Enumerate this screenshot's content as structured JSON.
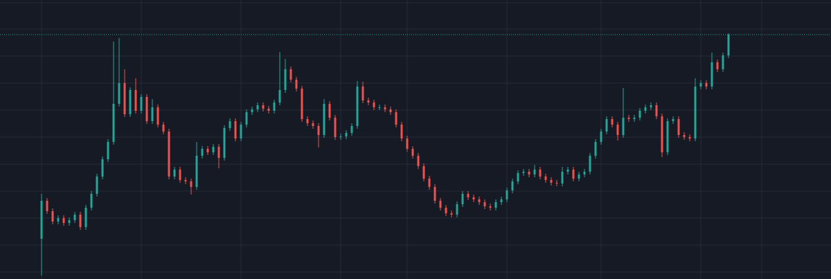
{
  "chart_data": {
    "type": "candlestick",
    "up_color": "#26a69a",
    "down_color": "#ef5350",
    "background": "#161a25",
    "grid_color": "#262b38",
    "grid": true,
    "last_price_line": true,
    "xlim": [
      -7.5,
      142.5
    ],
    "xticks": [
      0,
      18,
      36,
      54,
      66,
      84,
      101,
      119,
      130
    ],
    "ylim": [
      0,
      403
    ],
    "yticks": [
      10,
      49,
      88,
      127,
      166,
      205,
      244,
      283,
      322,
      361,
      399
    ],
    "ohlc": [
      [
        58,
        123,
        5,
        113
      ],
      [
        113,
        117,
        94,
        98
      ],
      [
        98,
        102,
        79,
        83
      ],
      [
        83,
        92,
        79,
        88
      ],
      [
        88,
        92,
        77,
        81
      ],
      [
        81,
        89,
        77,
        85
      ],
      [
        85,
        97,
        81,
        93
      ],
      [
        93,
        97,
        71,
        75
      ],
      [
        75,
        107,
        71,
        103
      ],
      [
        103,
        127,
        99,
        123
      ],
      [
        123,
        152,
        119,
        148
      ],
      [
        148,
        177,
        144,
        173
      ],
      [
        173,
        202,
        169,
        198
      ],
      [
        198,
        343,
        194,
        253
      ],
      [
        253,
        348,
        249,
        283
      ],
      [
        283,
        303,
        234,
        238
      ],
      [
        238,
        277,
        234,
        273
      ],
      [
        273,
        290,
        239,
        243
      ],
      [
        243,
        267,
        239,
        263
      ],
      [
        263,
        267,
        224,
        228
      ],
      [
        228,
        260,
        224,
        248
      ],
      [
        248,
        252,
        219,
        223
      ],
      [
        223,
        227,
        209,
        213
      ],
      [
        213,
        217,
        144,
        148
      ],
      [
        148,
        162,
        144,
        158
      ],
      [
        158,
        162,
        139,
        143
      ],
      [
        143,
        147,
        137,
        141
      ],
      [
        141,
        145,
        122,
        133
      ],
      [
        133,
        198,
        129,
        178
      ],
      [
        178,
        192,
        174,
        188
      ],
      [
        188,
        192,
        179,
        183
      ],
      [
        183,
        195,
        179,
        191
      ],
      [
        191,
        195,
        160,
        175
      ],
      [
        175,
        222,
        171,
        218
      ],
      [
        218,
        232,
        214,
        228
      ],
      [
        228,
        232,
        199,
        203
      ],
      [
        203,
        227,
        199,
        223
      ],
      [
        223,
        245,
        219,
        241
      ],
      [
        241,
        249,
        237,
        245
      ],
      [
        245,
        255,
        241,
        251
      ],
      [
        251,
        255,
        242,
        246
      ],
      [
        246,
        250,
        239,
        243
      ],
      [
        243,
        259,
        239,
        255
      ],
      [
        255,
        328,
        251,
        273
      ],
      [
        273,
        318,
        269,
        303
      ],
      [
        303,
        307,
        284,
        288
      ],
      [
        288,
        292,
        271,
        275
      ],
      [
        275,
        279,
        227,
        231
      ],
      [
        231,
        235,
        221,
        225
      ],
      [
        225,
        229,
        217,
        221
      ],
      [
        221,
        225,
        190,
        208
      ],
      [
        208,
        260,
        204,
        253
      ],
      [
        253,
        257,
        229,
        233
      ],
      [
        233,
        237,
        201,
        205
      ],
      [
        205,
        210,
        201,
        206
      ],
      [
        206,
        215,
        202,
        211
      ],
      [
        211,
        225,
        207,
        221
      ],
      [
        221,
        286,
        217,
        278
      ],
      [
        278,
        285,
        254,
        258
      ],
      [
        258,
        262,
        251,
        255
      ],
      [
        255,
        259,
        244,
        248
      ],
      [
        248,
        252,
        244,
        248
      ],
      [
        248,
        252,
        241,
        245
      ],
      [
        245,
        249,
        237,
        241
      ],
      [
        241,
        245,
        219,
        223
      ],
      [
        223,
        227,
        199,
        203
      ],
      [
        203,
        207,
        184,
        188
      ],
      [
        188,
        192,
        174,
        178
      ],
      [
        178,
        182,
        159,
        163
      ],
      [
        163,
        167,
        141,
        145
      ],
      [
        145,
        149,
        129,
        133
      ],
      [
        133,
        137,
        109,
        113
      ],
      [
        113,
        117,
        99,
        103
      ],
      [
        103,
        107,
        91,
        95
      ],
      [
        95,
        99,
        89,
        93
      ],
      [
        93,
        112,
        89,
        108
      ],
      [
        108,
        127,
        104,
        123
      ],
      [
        123,
        127,
        114,
        118
      ],
      [
        118,
        122,
        111,
        115
      ],
      [
        115,
        119,
        107,
        111
      ],
      [
        111,
        115,
        101,
        105
      ],
      [
        105,
        109,
        99,
        103
      ],
      [
        103,
        115,
        99,
        111
      ],
      [
        111,
        119,
        107,
        115
      ],
      [
        115,
        132,
        111,
        128
      ],
      [
        128,
        145,
        124,
        141
      ],
      [
        141,
        157,
        137,
        153
      ],
      [
        153,
        159,
        149,
        155
      ],
      [
        155,
        159,
        147,
        151
      ],
      [
        151,
        165,
        147,
        158
      ],
      [
        158,
        162,
        144,
        148
      ],
      [
        148,
        152,
        139,
        143
      ],
      [
        143,
        147,
        135,
        139
      ],
      [
        139,
        143,
        134,
        138
      ],
      [
        138,
        162,
        134,
        155
      ],
      [
        155,
        162,
        151,
        158
      ],
      [
        158,
        162,
        141,
        145
      ],
      [
        145,
        155,
        141,
        151
      ],
      [
        151,
        159,
        147,
        155
      ],
      [
        155,
        182,
        151,
        178
      ],
      [
        178,
        202,
        174,
        198
      ],
      [
        198,
        217,
        194,
        213
      ],
      [
        213,
        235,
        209,
        231
      ],
      [
        231,
        235,
        219,
        223
      ],
      [
        223,
        227,
        200,
        208
      ],
      [
        208,
        276,
        204,
        233
      ],
      [
        233,
        237,
        227,
        231
      ],
      [
        231,
        237,
        227,
        233
      ],
      [
        233,
        247,
        229,
        243
      ],
      [
        243,
        252,
        239,
        248
      ],
      [
        248,
        255,
        244,
        251
      ],
      [
        251,
        255,
        231,
        235
      ],
      [
        235,
        239,
        176,
        183
      ],
      [
        183,
        232,
        179,
        228
      ],
      [
        228,
        235,
        224,
        231
      ],
      [
        231,
        235,
        204,
        208
      ],
      [
        208,
        212,
        201,
        205
      ],
      [
        205,
        209,
        199,
        203
      ],
      [
        203,
        290,
        199,
        278
      ],
      [
        278,
        287,
        274,
        283
      ],
      [
        283,
        287,
        274,
        278
      ],
      [
        278,
        327,
        274,
        313
      ],
      [
        313,
        317,
        299,
        303
      ],
      [
        303,
        327,
        299,
        323
      ],
      [
        323,
        355,
        319,
        353
      ]
    ]
  }
}
